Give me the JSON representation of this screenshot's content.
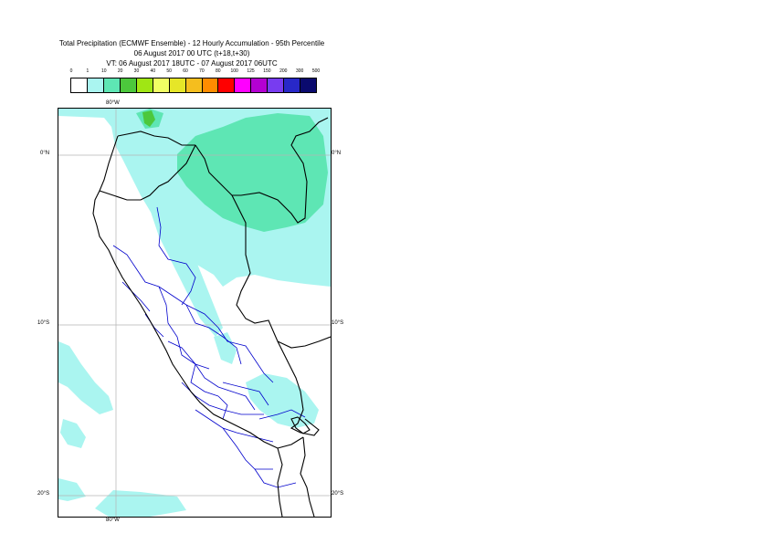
{
  "header": {
    "title_line1": "Total Precipitation (ECMWF Ensemble) - 12 Hourly Accumulation - 95th Percentile",
    "title_line2": "06 August 2017 00 UTC (t+18,t+30)",
    "title_line3": "VT: 06 August 2017 18UTC - 07 August 2017 06UTC"
  },
  "legend": {
    "thresholds": [
      "0",
      "1",
      "10",
      "20",
      "30",
      "40",
      "50",
      "60",
      "70",
      "80",
      "100",
      "125",
      "150",
      "200",
      "300",
      "500"
    ],
    "colors": [
      "#ffffff",
      "#aaf5f0",
      "#5ee6b4",
      "#4cc83c",
      "#a0e614",
      "#f0ff64",
      "#e6e628",
      "#f5be1e",
      "#ff8c00",
      "#ff0000",
      "#ff00ff",
      "#b400d2",
      "#783cf0",
      "#2828c8",
      "#0a0a6e"
    ]
  },
  "axes": {
    "lon_top": "80°W",
    "lon_bottom": "80°W",
    "lat_0_left": "0°N",
    "lat_0_right": "0°N",
    "lat_10_left": "10°S",
    "lat_10_right": "10°S",
    "lat_20_left": "20°S",
    "lat_20_right": "20°S"
  },
  "colors": {
    "light_precip": "#aaf5f0",
    "moderate_precip": "#5ee6b4",
    "heavy_precip": "#4cc83c",
    "coastline": "#000000",
    "admin_boundary": "#0000cc",
    "gridline": "#b4b4b4"
  }
}
